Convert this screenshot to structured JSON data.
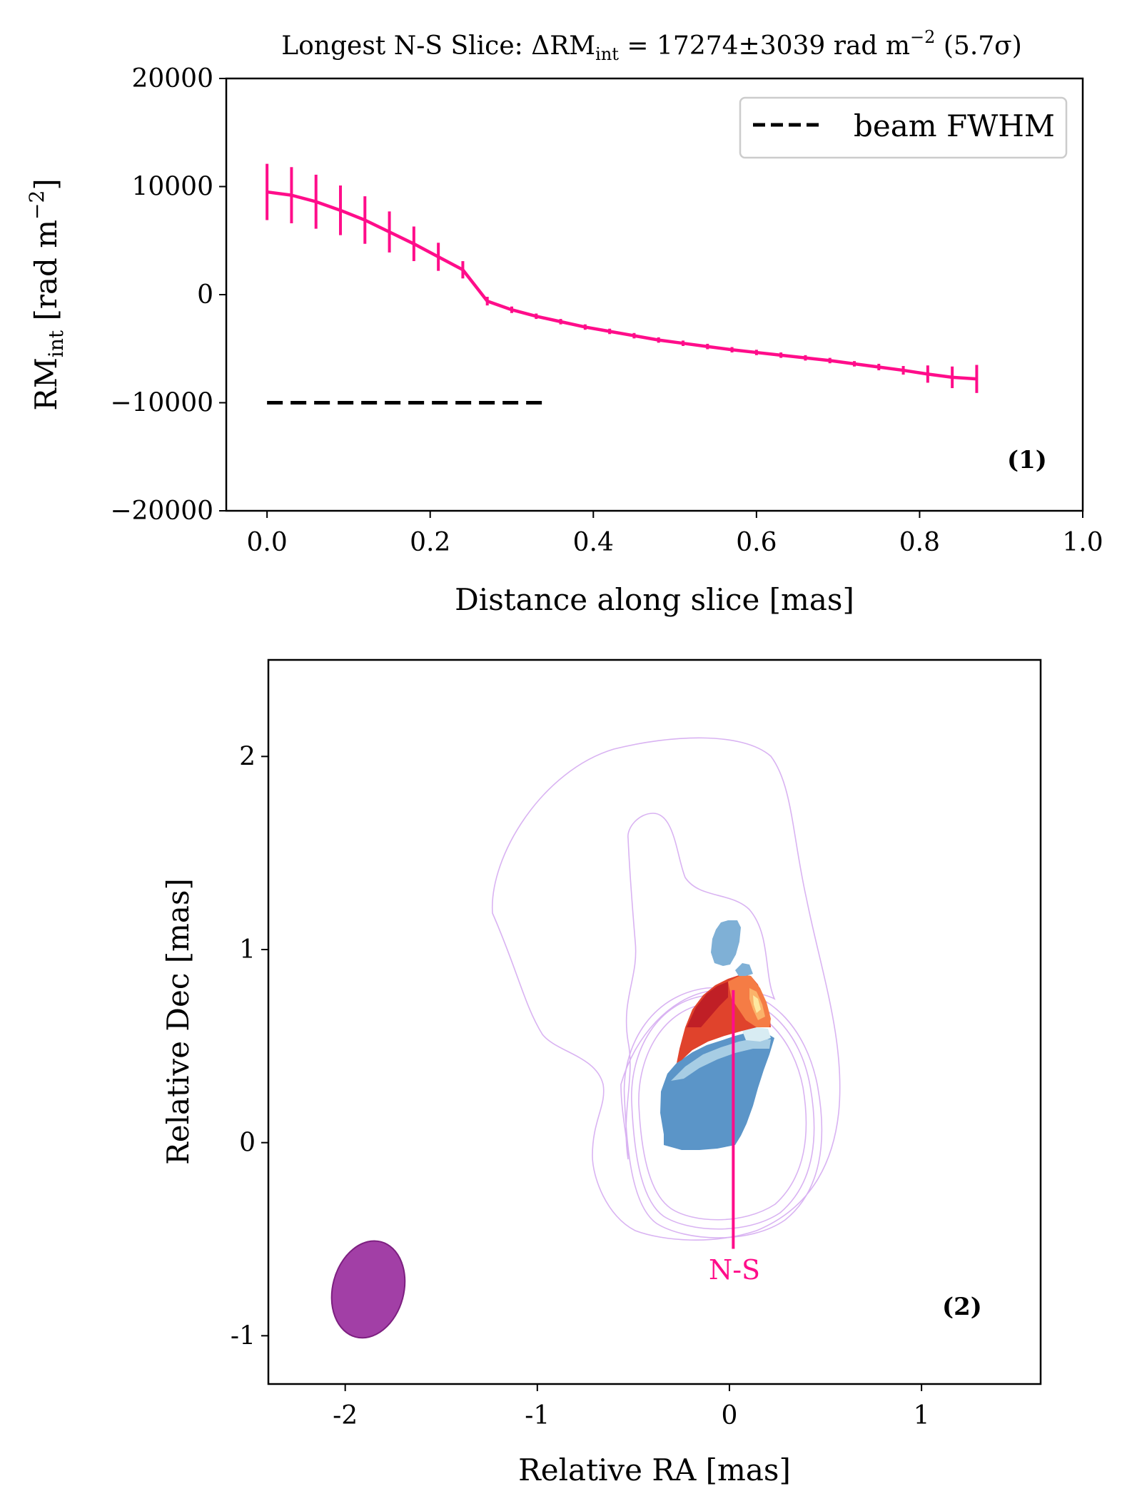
{
  "colors": {
    "series": "#ff0d8a",
    "beam_line": "#000000",
    "contour": "#d9b3f2",
    "beam_ellipse": "#9a2f9e",
    "rm_negative": [
      "#2c6fb4",
      "#5b95c8",
      "#7fb0d6",
      "#a7cde4",
      "#d8ecf3"
    ],
    "rm_positive": [
      "#fde8a0",
      "#fbb36a",
      "#f57c45",
      "#e0432c",
      "#c01f26"
    ]
  },
  "chart_data": [
    {
      "type": "line",
      "panel_label": "(1)",
      "title": "Longest N-S Slice: ΔRM",
      "title_sub": "int",
      "title_rest": " = 17274±3039 rad m",
      "title_sup": "−2",
      "title_tail": "  (5.7σ)",
      "xlabel": "Distance along slice [mas]",
      "ylabel_main": "RM",
      "ylabel_sub": "int",
      "ylabel_unit": " [rad m",
      "ylabel_sup": "−2",
      "ylabel_close": "]",
      "xlim": [
        -0.05,
        1.0
      ],
      "ylim": [
        -20000,
        20000
      ],
      "xticks": [
        0.0,
        0.2,
        0.4,
        0.6,
        0.8,
        1.0
      ],
      "xtick_labels": [
        "0.0",
        "0.2",
        "0.4",
        "0.6",
        "0.8",
        "1.0"
      ],
      "yticks": [
        -20000,
        -10000,
        0,
        10000,
        20000
      ],
      "ytick_labels": [
        "−20000",
        "−10000",
        "0",
        "10000",
        "20000"
      ],
      "legend_position": "upper right",
      "legend_label": "beam FWHM",
      "beam_fwhm": {
        "x": [
          0.0,
          0.34
        ],
        "y": -10000
      },
      "series": [
        {
          "x": [
            0.0,
            0.03,
            0.06,
            0.09,
            0.12,
            0.15,
            0.18,
            0.21,
            0.24,
            0.27,
            0.3,
            0.33,
            0.36,
            0.39,
            0.42,
            0.45,
            0.48,
            0.51,
            0.54,
            0.57,
            0.6,
            0.63,
            0.66,
            0.69,
            0.72,
            0.75,
            0.78,
            0.81,
            0.84,
            0.87
          ],
          "y": [
            9500,
            9200,
            8600,
            7800,
            6900,
            5800,
            4700,
            3500,
            2300,
            -600,
            -1400,
            -2000,
            -2500,
            -3000,
            -3400,
            -3800,
            -4200,
            -4500,
            -4800,
            -5100,
            -5350,
            -5600,
            -5850,
            -6100,
            -6400,
            -6700,
            -7000,
            -7350,
            -7650,
            -7800
          ],
          "err": [
            2600,
            2600,
            2500,
            2300,
            2200,
            1900,
            1600,
            1300,
            800,
            400,
            300,
            250,
            250,
            250,
            250,
            250,
            250,
            250,
            250,
            250,
            250,
            250,
            250,
            250,
            250,
            300,
            400,
            800,
            1000,
            1300
          ]
        }
      ]
    },
    {
      "type": "heatmap",
      "panel_label": "(2)",
      "xlabel": "Relative RA [mas]",
      "ylabel": "Relative Dec [mas]",
      "xlim": [
        -2.4,
        1.62
      ],
      "ylim": [
        -1.25,
        2.5
      ],
      "xticks": [
        -2,
        -1,
        0,
        1
      ],
      "xtick_labels": [
        "-2",
        "-1",
        "0",
        "1"
      ],
      "yticks": [
        -1,
        0,
        1,
        2
      ],
      "ytick_labels": [
        "-1",
        "0",
        "1",
        "2"
      ],
      "slice_label": "N-S",
      "slice": {
        "x": [
          0.02,
          0.02
        ],
        "y": [
          -0.55,
          0.79
        ]
      },
      "beam": {
        "center": [
          -1.88,
          -0.76
        ],
        "width": 0.37,
        "height": 0.51,
        "angle_deg": 15
      }
    }
  ]
}
